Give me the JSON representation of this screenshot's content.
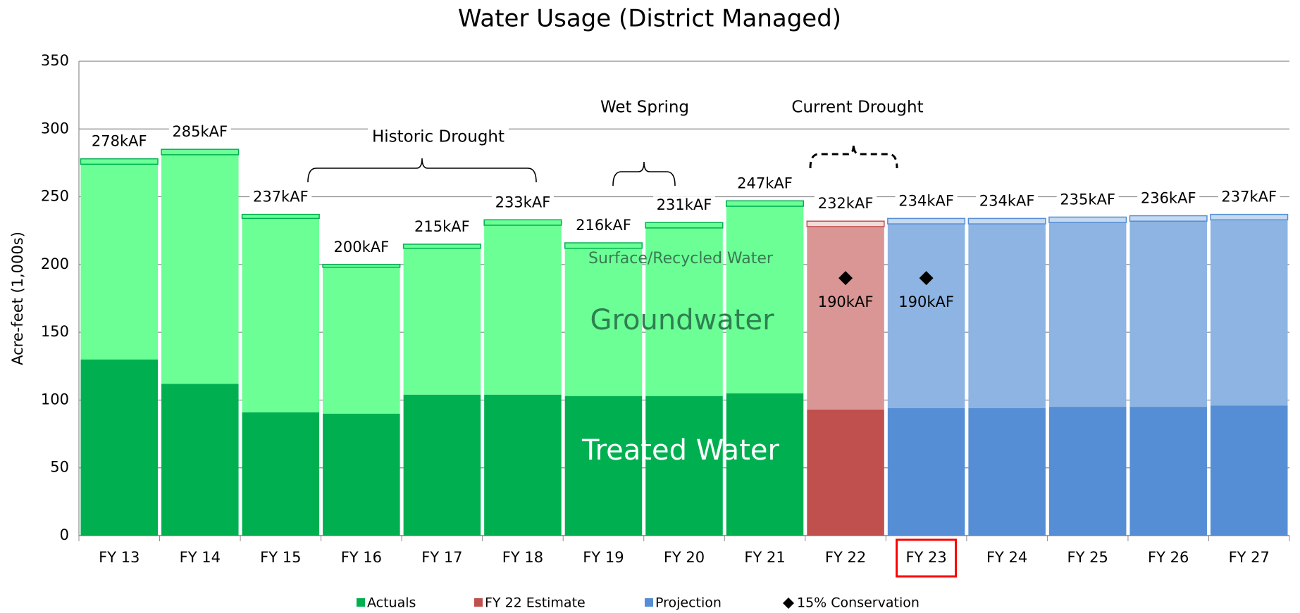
{
  "chart_data": {
    "type": "stacked_bar",
    "title": "Water Usage (District Managed)",
    "y_label": "Acre-feet (1,000s)",
    "categories": [
      "FY 13",
      "FY 14",
      "FY 15",
      "FY 16",
      "FY 17",
      "FY 18",
      "FY 19",
      "FY 20",
      "FY 21",
      "FY 22",
      "FY 23",
      "FY 24",
      "FY 25",
      "FY 26",
      "FY 27"
    ],
    "ylim": [
      0,
      350
    ],
    "yticks": [
      0,
      50,
      100,
      150,
      200,
      250,
      300,
      350
    ],
    "grid": true,
    "series": [
      {
        "name": "Treated Water",
        "values": [
          130,
          112,
          91,
          90,
          104,
          104,
          103,
          103,
          105,
          93,
          94,
          94,
          95,
          95,
          96
        ],
        "colors": [
          "#00b050",
          "#00b050",
          "#00b050",
          "#00b050",
          "#00b050",
          "#00b050",
          "#00b050",
          "#00b050",
          "#00b050",
          "#c0504d",
          "#558ed5",
          "#558ed5",
          "#558ed5",
          "#558ed5",
          "#558ed5"
        ]
      },
      {
        "name": "Groundwater",
        "values": [
          144,
          169,
          143,
          108,
          108,
          125,
          109,
          124,
          138,
          135,
          136,
          136,
          136,
          137,
          137
        ],
        "colors": [
          "#6bff96",
          "#6bff96",
          "#6bff96",
          "#6bff96",
          "#6bff96",
          "#6bff96",
          "#6bff96",
          "#6bff96",
          "#6bff96",
          "#d99694",
          "#8db4e2",
          "#8db4e2",
          "#8db4e2",
          "#8db4e2",
          "#8db4e2"
        ]
      },
      {
        "name": "Surface/Recycled Water",
        "values": [
          4,
          4,
          3,
          2,
          3,
          4,
          4,
          4,
          4,
          4,
          4,
          4,
          4,
          4,
          4
        ],
        "colors": [
          "#6bff96",
          "#6bff96",
          "#6bff96",
          "#6bff96",
          "#6bff96",
          "#6bff96",
          "#6bff96",
          "#6bff96",
          "#6bff96",
          "#f2dcdb",
          "#c5d9f1",
          "#c5d9f1",
          "#c5d9f1",
          "#c5d9f1",
          "#c5d9f1"
        ]
      }
    ],
    "totals": {
      "values": [
        278,
        285,
        237,
        200,
        215,
        233,
        216,
        231,
        247,
        232,
        234,
        234,
        235,
        236,
        237
      ],
      "value_labels": [
        "278kAF",
        "285kAF",
        "237kAF",
        "200kAF",
        "215kAF",
        "233kAF",
        "216kAF",
        "231kAF",
        "247kAF",
        "232kAF",
        "234kAF",
        "234kAF",
        "235kAF",
        "236kAF",
        "237kAF"
      ]
    },
    "conservation": {
      "name": "15% Conservation",
      "color": "#000000",
      "values": [
        null,
        null,
        null,
        null,
        null,
        null,
        null,
        null,
        null,
        190,
        190,
        null,
        null,
        null,
        null
      ],
      "value_labels": [
        null,
        null,
        null,
        null,
        null,
        null,
        null,
        null,
        null,
        "190kAF",
        "190kAF",
        null,
        null,
        null,
        null
      ]
    },
    "legend": [
      {
        "name": "Actuals",
        "color": "#00b050"
      },
      {
        "name": "FY 22 Estimate",
        "color": "#c0504d"
      },
      {
        "name": "Projection",
        "color": "#558ed5"
      }
    ],
    "annotations": [
      "Historic Drought",
      "Wet Spring",
      "Current Drought"
    ],
    "highlight_index": 10
  }
}
